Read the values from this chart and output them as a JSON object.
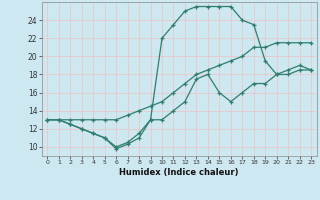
{
  "xlabel": "Humidex (Indice chaleur)",
  "ylabel": "",
  "bg_color": "#cde8f0",
  "grid_color": "#e8c8c8",
  "line_color": "#2e7d6e",
  "xlim": [
    -0.5,
    23.5
  ],
  "ylim": [
    9.0,
    26.0
  ],
  "xticks": [
    0,
    1,
    2,
    3,
    4,
    5,
    6,
    7,
    8,
    9,
    10,
    11,
    12,
    13,
    14,
    15,
    16,
    17,
    18,
    19,
    20,
    21,
    22,
    23
  ],
  "yticks": [
    10,
    12,
    14,
    16,
    18,
    20,
    22,
    24
  ],
  "line1_x": [
    0,
    1,
    2,
    3,
    4,
    5,
    6,
    7,
    8,
    9,
    10,
    11,
    12,
    13,
    14,
    15,
    16,
    17,
    18,
    19,
    20,
    21,
    22,
    23
  ],
  "line1_y": [
    13,
    13,
    12.5,
    12,
    11.5,
    11,
    10,
    10.5,
    11.5,
    13,
    13,
    14,
    15,
    17.5,
    18,
    16,
    15,
    16,
    17,
    17,
    18,
    18,
    18.5,
    18.5
  ],
  "line2_x": [
    0,
    1,
    2,
    3,
    4,
    5,
    6,
    7,
    8,
    9,
    10,
    11,
    12,
    13,
    14,
    15,
    16,
    17,
    18,
    19,
    20,
    21,
    22,
    23
  ],
  "line2_y": [
    13,
    13,
    13,
    13,
    13,
    13,
    13,
    13.5,
    14,
    14.5,
    15,
    16,
    17,
    18,
    18.5,
    19,
    19.5,
    20,
    21,
    21,
    21.5,
    21.5,
    21.5,
    21.5
  ],
  "line3_x": [
    0,
    1,
    2,
    3,
    4,
    5,
    6,
    7,
    8,
    9,
    10,
    11,
    12,
    13,
    14,
    15,
    16,
    17,
    18,
    19,
    20,
    21,
    22,
    23
  ],
  "line3_y": [
    13,
    13,
    12.5,
    12,
    11.5,
    11,
    9.8,
    10.3,
    11,
    13,
    22,
    23.5,
    25,
    25.5,
    25.5,
    25.5,
    25.5,
    24,
    23.5,
    19.5,
    18,
    18.5,
    19,
    18.5
  ]
}
